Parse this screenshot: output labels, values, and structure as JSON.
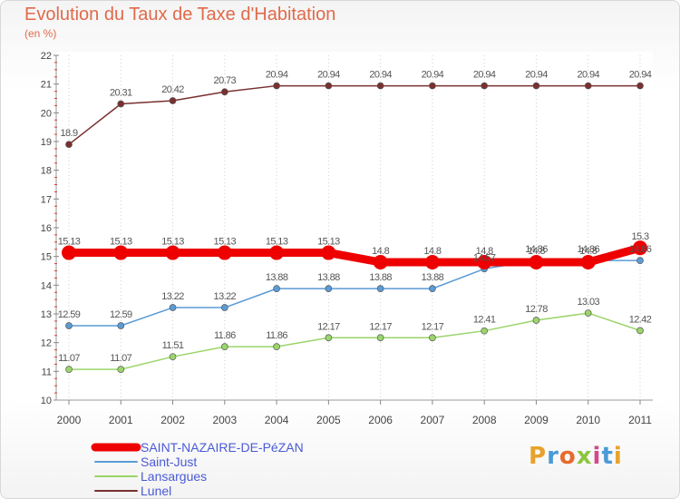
{
  "header": {
    "title": "Evolution du Taux de Taxe d'Habitation",
    "unit": "(en %)"
  },
  "brand": {
    "text": "Proxiti",
    "colors": [
      "#e8a22b",
      "#4a9ad6",
      "#e86a2b",
      "#8cc63f",
      "#d14a8a",
      "#4a9ad6",
      "#e8a22b"
    ]
  },
  "chart_data": {
    "type": "line",
    "title": "Evolution du Taux de Taxe d'Habitation",
    "ylabel": "(en %)",
    "xlabel": "",
    "x": [
      "2000",
      "2001",
      "2002",
      "2003",
      "2004",
      "2005",
      "2006",
      "2007",
      "2008",
      "2009",
      "2010",
      "2011"
    ],
    "ylim": [
      10,
      22
    ],
    "yticks": [
      "10",
      "11",
      "12",
      "13",
      "14",
      "15",
      "16",
      "17",
      "18",
      "19",
      "20",
      "21",
      "22"
    ],
    "grid": "vertical-dotted",
    "legend": "bottom",
    "series": [
      {
        "name": "SAINT-NAZAIRE-DE-PéZAN",
        "color": "#ee0000",
        "values": [
          15.13,
          15.13,
          15.13,
          15.13,
          15.13,
          15.13,
          14.8,
          14.8,
          14.8,
          14.8,
          14.8,
          15.3
        ],
        "labels": [
          "15.13",
          "15.13",
          "15.13",
          "15.13",
          "15.13",
          "15.13",
          "14.8",
          "14.8",
          "14.8",
          "14.8",
          "14.8",
          "15.3"
        ]
      },
      {
        "name": "Saint-Just",
        "color": "#5b9bd5",
        "values": [
          12.59,
          12.59,
          13.22,
          13.22,
          13.88,
          13.88,
          13.88,
          13.88,
          14.57,
          14.86,
          14.86,
          14.86
        ],
        "labels": [
          "12.59",
          "12.59",
          "13.22",
          "13.22",
          "13.88",
          "13.88",
          "13.88",
          "13.88",
          "14.57",
          "14.86",
          "14.86",
          "14.86"
        ]
      },
      {
        "name": "Lansargues",
        "color": "#9bd56a",
        "values": [
          11.07,
          11.07,
          11.51,
          11.86,
          11.86,
          12.17,
          12.17,
          12.17,
          12.41,
          12.78,
          13.03,
          12.42
        ],
        "labels": [
          "11.07",
          "11.07",
          "11.51",
          "11.86",
          "11.86",
          "12.17",
          "12.17",
          "12.17",
          "12.41",
          "12.78",
          "13.03",
          "12.42"
        ]
      },
      {
        "name": "Lunel",
        "color": "#7a3030",
        "values": [
          18.9,
          20.31,
          20.42,
          20.73,
          20.94,
          20.94,
          20.94,
          20.94,
          20.94,
          20.94,
          20.94,
          20.94
        ],
        "labels": [
          "18.9",
          "20.31",
          "20.42",
          "20.73",
          "20.94",
          "20.94",
          "20.94",
          "20.94",
          "20.94",
          "20.94",
          "20.94",
          "20.94"
        ]
      }
    ]
  }
}
